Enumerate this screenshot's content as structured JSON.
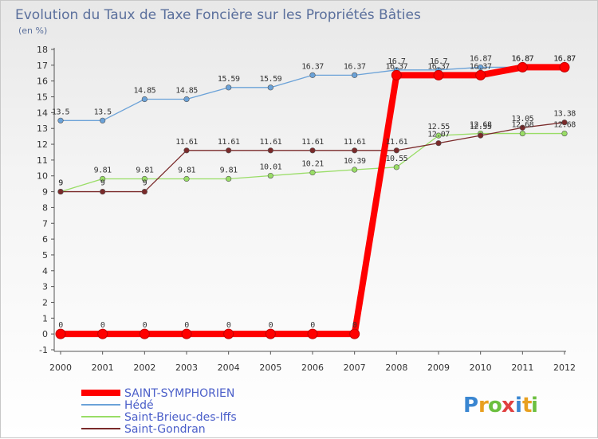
{
  "chart_data": {
    "type": "line",
    "title": "Evolution du Taux de Taxe Foncière sur les Propriétés Bâties",
    "subtitle": "(en %)",
    "xlabel": "",
    "ylabel": "",
    "x": [
      "2000",
      "2001",
      "2002",
      "2003",
      "2004",
      "2005",
      "2006",
      "2007",
      "2008",
      "2009",
      "2010",
      "2011",
      "2012"
    ],
    "yticks": [
      "-1",
      "0",
      "1",
      "2",
      "3",
      "4",
      "5",
      "6",
      "7",
      "8",
      "9",
      "10",
      "11",
      "12",
      "13",
      "14",
      "15",
      "16",
      "17",
      "18"
    ],
    "ylim": [
      -1,
      18
    ],
    "grid": false,
    "legend_position": "bottom-left",
    "series": [
      {
        "name": "SAINT-SYMPHORIEN",
        "color": "#ff0000",
        "values": [
          0,
          0,
          0,
          0,
          0,
          0,
          0,
          0,
          16.37,
          16.37,
          16.37,
          16.87,
          16.87
        ],
        "labels": [
          "0",
          "0",
          "0",
          "0",
          "0",
          "0",
          "0",
          "0",
          "16.37",
          "16.37",
          "16.37",
          "16.87",
          "16.87"
        ]
      },
      {
        "name": "Hédé",
        "color": "#6ba2d8",
        "values": [
          13.5,
          13.5,
          14.85,
          14.85,
          15.59,
          15.59,
          16.37,
          16.37,
          16.7,
          16.7,
          16.87,
          16.87,
          16.87
        ],
        "labels": [
          "13.5",
          "13.5",
          "14.85",
          "14.85",
          "15.59",
          "15.59",
          "16.37",
          "16.37",
          "16.7",
          "16.7",
          "16.87",
          "16.87",
          "16.87"
        ]
      },
      {
        "name": "Saint-Brieuc-des-Iffs",
        "color": "#99dd66",
        "values": [
          9,
          9.81,
          9.81,
          9.81,
          9.81,
          10.01,
          10.21,
          10.39,
          10.55,
          12.55,
          12.68,
          12.68,
          12.68
        ],
        "labels": [
          "9",
          "9.81",
          "9.81",
          "9.81",
          "9.81",
          "10.01",
          "10.21",
          "10.39",
          "10.55",
          "12.55",
          "12.68",
          "12.68",
          "12.68"
        ]
      },
      {
        "name": "Saint-Gondran",
        "color": "#7a2a2a",
        "values": [
          9,
          9,
          9,
          11.61,
          11.61,
          11.61,
          11.61,
          11.61,
          11.61,
          12.07,
          12.55,
          13.05,
          13.38
        ],
        "labels": [
          "9",
          "9",
          "9",
          "11.61",
          "11.61",
          "11.61",
          "11.61",
          "11.61",
          "11.61",
          "12.07",
          "12.55",
          "13.05",
          "13.38"
        ]
      }
    ]
  },
  "logo": {
    "letters": [
      "P",
      "r",
      "o",
      "x",
      "i",
      "t",
      "i"
    ],
    "colors": [
      "#3a86d1",
      "#e8a020",
      "#6cbf3f",
      "#e04040",
      "#3a86d1",
      "#e8a020",
      "#6cbf3f"
    ]
  }
}
